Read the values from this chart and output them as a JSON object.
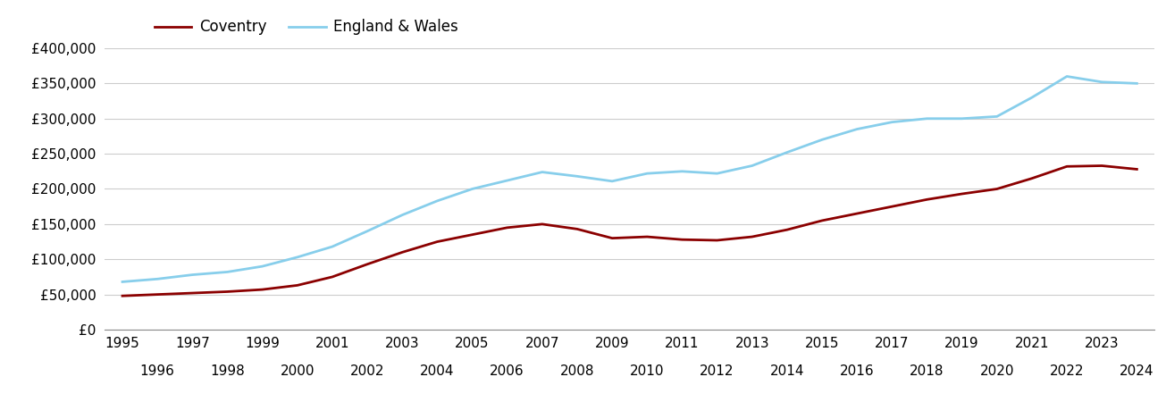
{
  "years": [
    1995,
    1996,
    1997,
    1998,
    1999,
    2000,
    2001,
    2002,
    2003,
    2004,
    2005,
    2006,
    2007,
    2008,
    2009,
    2010,
    2011,
    2012,
    2013,
    2014,
    2015,
    2016,
    2017,
    2018,
    2019,
    2020,
    2021,
    2022,
    2023,
    2024
  ],
  "coventry": [
    48000,
    50000,
    52000,
    54000,
    57000,
    63000,
    75000,
    93000,
    110000,
    125000,
    135000,
    145000,
    150000,
    143000,
    130000,
    132000,
    128000,
    127000,
    132000,
    142000,
    155000,
    165000,
    175000,
    185000,
    193000,
    200000,
    215000,
    232000,
    233000,
    228000
  ],
  "england_wales": [
    68000,
    72000,
    78000,
    82000,
    90000,
    103000,
    118000,
    140000,
    163000,
    183000,
    200000,
    212000,
    224000,
    218000,
    211000,
    222000,
    225000,
    222000,
    233000,
    252000,
    270000,
    285000,
    295000,
    300000,
    300000,
    303000,
    330000,
    360000,
    352000,
    350000
  ],
  "coventry_color": "#8b0000",
  "england_wales_color": "#87ceeb",
  "background_color": "#ffffff",
  "grid_color": "#cccccc",
  "ylim": [
    0,
    400000
  ],
  "yticks": [
    0,
    50000,
    100000,
    150000,
    200000,
    250000,
    300000,
    350000,
    400000
  ],
  "legend_labels": [
    "Coventry",
    "England & Wales"
  ],
  "line_width": 2.0,
  "tick_label_fontsize": 11,
  "legend_fontsize": 12
}
